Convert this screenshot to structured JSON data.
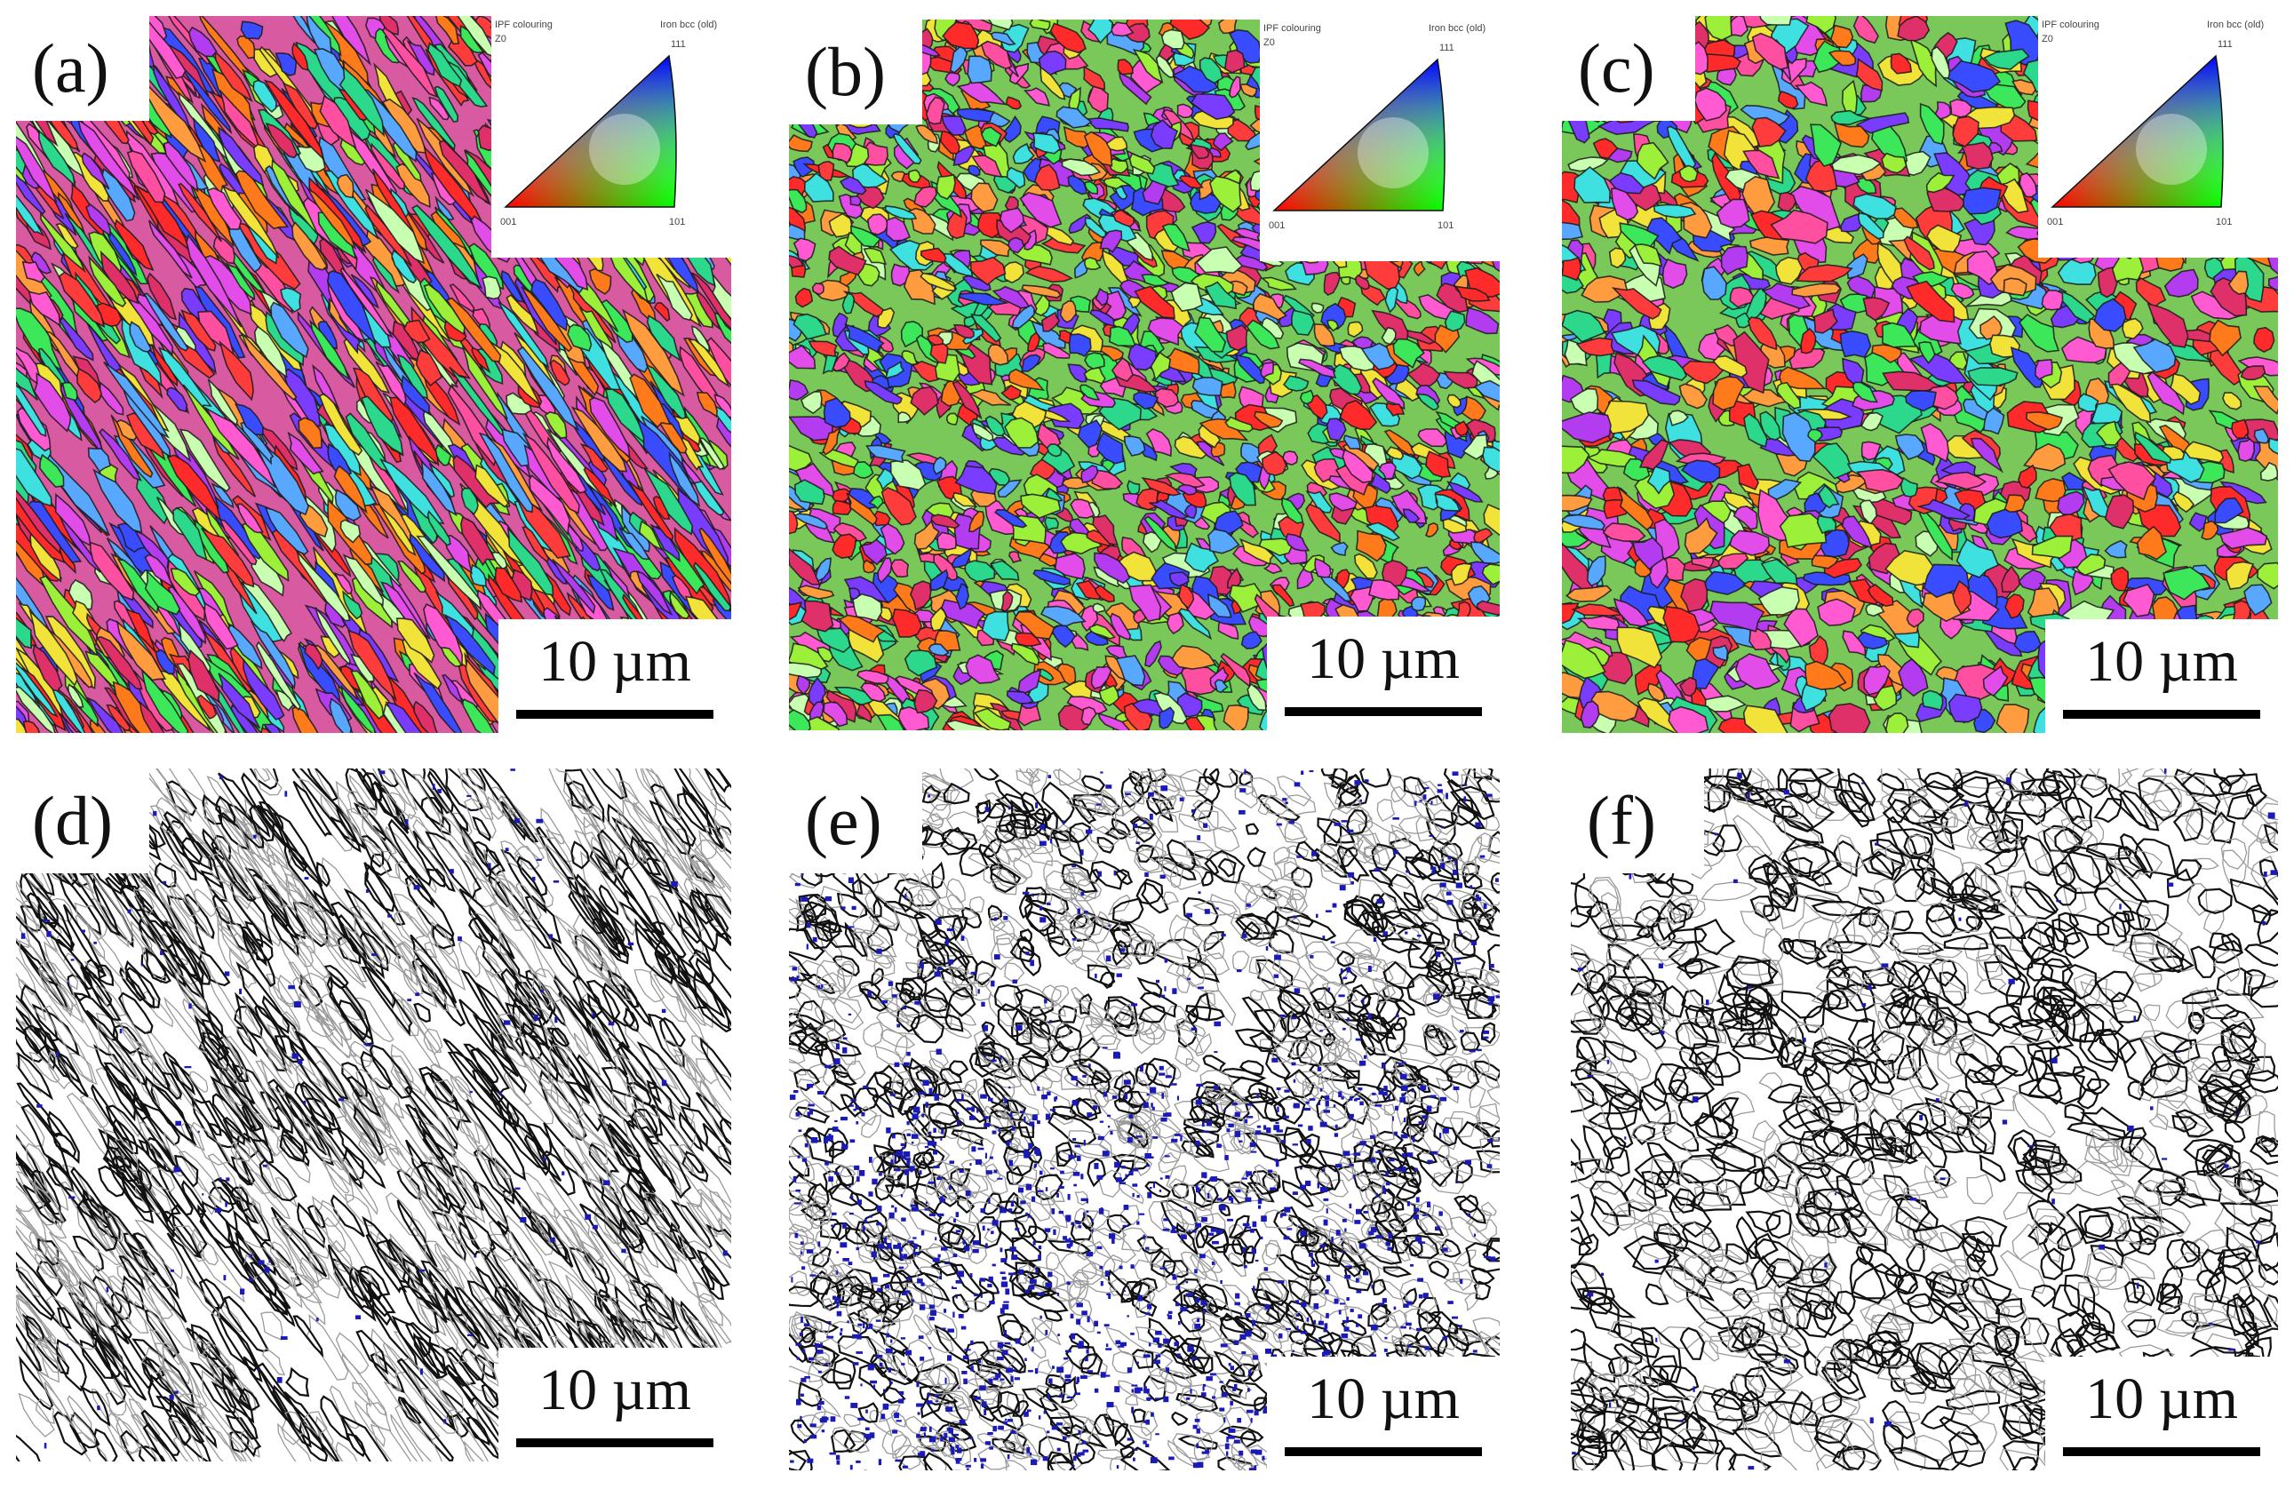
{
  "figure": {
    "panels": [
      {
        "id": "a",
        "label": "(a)",
        "kind": "ipf",
        "scale": "10 µm",
        "style": "elongated"
      },
      {
        "id": "b",
        "label": "(b)",
        "kind": "ipf",
        "scale": "10 µm",
        "style": "mixed"
      },
      {
        "id": "c",
        "label": "(c)",
        "kind": "ipf",
        "scale": "10 µm",
        "style": "equiaxed"
      },
      {
        "id": "d",
        "label": "(d)",
        "kind": "boundary",
        "scale": "10 µm",
        "style": "elongated"
      },
      {
        "id": "e",
        "label": "(e)",
        "kind": "boundary",
        "scale": "10 µm",
        "style": "mixed"
      },
      {
        "id": "f",
        "label": "(f)",
        "kind": "boundary",
        "scale": "10 µm",
        "style": "equiaxed"
      }
    ],
    "ipf_key": {
      "title": "IPF colouring",
      "reference": "Z0",
      "phase": "Iron bcc (old)",
      "corner_001": "001",
      "corner_101": "101",
      "corner_111": "111",
      "colors": {
        "c001": "#ff0000",
        "c101": "#00ff00",
        "c111": "#0000ff"
      }
    },
    "boundary_colors": {
      "high_angle": "#111111",
      "low_angle": "#9a9a9a",
      "very_low_angle": "#1a1ab8"
    }
  }
}
